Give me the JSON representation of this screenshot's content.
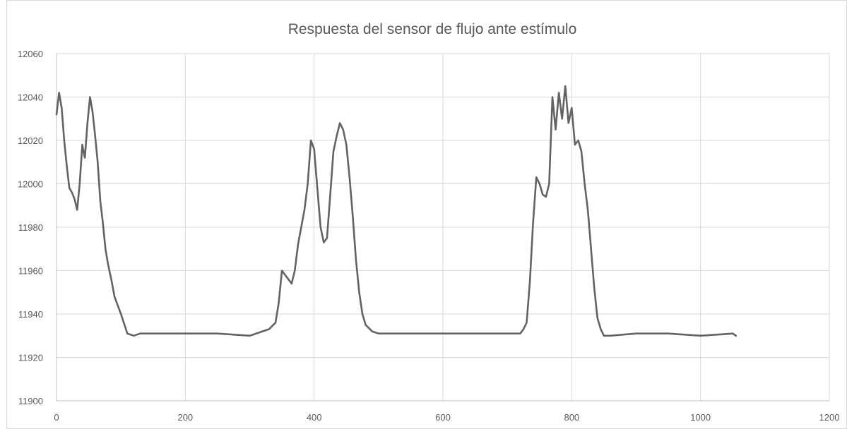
{
  "chart_data": {
    "type": "line",
    "title": "Respuesta del sensor de flujo ante estímulo",
    "xlabel": "",
    "ylabel": "",
    "xlim": [
      0,
      1200
    ],
    "ylim": [
      11900,
      12060
    ],
    "x_ticks": [
      0,
      200,
      400,
      600,
      800,
      1000,
      1200
    ],
    "y_ticks": [
      11900,
      11920,
      11940,
      11960,
      11980,
      12000,
      12020,
      12040,
      12060
    ],
    "grid": true,
    "legend": "none",
    "series_color": "#636363",
    "series": [
      {
        "x": [
          0,
          4,
          8,
          12,
          16,
          20,
          24,
          28,
          32,
          36,
          40,
          44,
          48,
          52,
          56,
          60,
          64,
          68,
          72,
          76,
          80,
          85,
          90,
          95,
          100,
          110,
          120,
          130,
          150,
          200,
          250,
          300,
          320,
          330,
          340,
          345,
          350,
          355,
          360,
          365,
          370,
          375,
          380,
          385,
          390,
          395,
          400,
          405,
          410,
          415,
          420,
          425,
          430,
          435,
          440,
          445,
          450,
          455,
          460,
          465,
          470,
          475,
          480,
          490,
          500,
          550,
          600,
          650,
          700,
          720,
          725,
          730,
          735,
          740,
          745,
          750,
          755,
          760,
          765,
          770,
          775,
          780,
          785,
          790,
          795,
          800,
          805,
          810,
          815,
          820,
          825,
          830,
          835,
          840,
          845,
          850,
          860,
          900,
          950,
          1000,
          1050,
          1055
        ],
        "y": [
          12032,
          12042,
          12035,
          12020,
          12008,
          11998,
          11996,
          11993,
          11988,
          12000,
          12018,
          12012,
          12028,
          12040,
          12033,
          12022,
          12010,
          11992,
          11982,
          11970,
          11963,
          11956,
          11948,
          11944,
          11940,
          11931,
          11930,
          11931,
          11931,
          11931,
          11931,
          11930,
          11932,
          11933,
          11936,
          11945,
          11960,
          11958,
          11956,
          11954,
          11960,
          11972,
          11980,
          11988,
          12000,
          12020,
          12016,
          11998,
          11980,
          11973,
          11975,
          11995,
          12015,
          12022,
          12028,
          12025,
          12018,
          12003,
          11985,
          11965,
          11950,
          11940,
          11935,
          11932,
          11931,
          11931,
          11931,
          11931,
          11931,
          11931,
          11933,
          11936,
          11955,
          11982,
          12003,
          12000,
          11995,
          11994,
          12000,
          12040,
          12025,
          12042,
          12030,
          12045,
          12028,
          12035,
          12018,
          12020,
          12015,
          12000,
          11988,
          11970,
          11952,
          11938,
          11933,
          11930,
          11930,
          11931,
          11931,
          11930,
          11931,
          11930
        ]
      }
    ]
  }
}
